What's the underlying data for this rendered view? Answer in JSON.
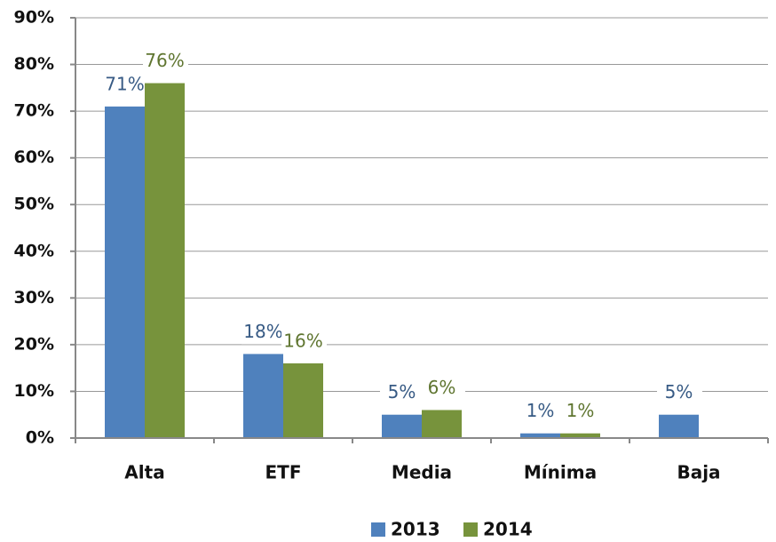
{
  "chart_data": {
    "type": "bar",
    "categories": [
      "Alta",
      "ETF",
      "Media",
      "Mínima",
      "Baja"
    ],
    "series": [
      {
        "name": "2013",
        "color": "#4f81bd",
        "label_color": "#375a84",
        "values": [
          71,
          18,
          5,
          1,
          5
        ],
        "value_labels": [
          "71%",
          "18%",
          "5%",
          "1%",
          "5%"
        ]
      },
      {
        "name": "2014",
        "color": "#77933c",
        "label_color": "#5f7530",
        "values": [
          76,
          16,
          6,
          1,
          null
        ],
        "value_labels": [
          "76%",
          "16%",
          "6%",
          "1%",
          null
        ]
      }
    ],
    "ylim": [
      0,
      90
    ],
    "yticks": [
      {
        "value": 0,
        "label": "0%"
      },
      {
        "value": 10,
        "label": "10%"
      },
      {
        "value": 20,
        "label": "20%"
      },
      {
        "value": 30,
        "label": "30%"
      },
      {
        "value": 40,
        "label": "40%"
      },
      {
        "value": 50,
        "label": "50%"
      },
      {
        "value": 60,
        "label": "60%"
      },
      {
        "value": 70,
        "label": "70%"
      },
      {
        "value": 80,
        "label": "80%"
      },
      {
        "value": 90,
        "label": "90%"
      }
    ],
    "grid": true,
    "legend": "bottom"
  }
}
